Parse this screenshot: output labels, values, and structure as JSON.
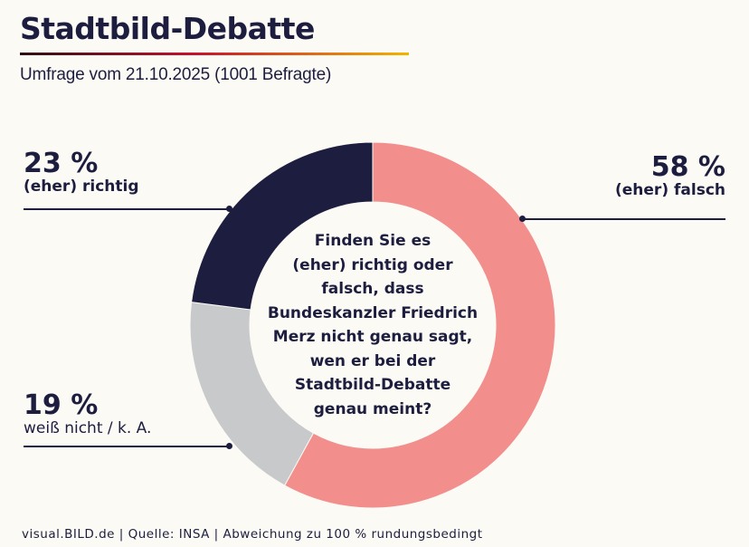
{
  "header": {
    "title": "Stadtbild-Debatte",
    "subtitle": "Umfrage vom 21.10.2025 (1001 Befragte)"
  },
  "chart_data": {
    "type": "pie",
    "variant": "donut",
    "title": "Stadtbild-Debatte",
    "subtitle": "Umfrage vom 21.10.2025 (1001 Befragte)",
    "question": "Finden Sie es\n(eher) richtig oder\nfalsch, dass\nBundeskanzler Friedrich\nMerz nicht genau sagt,\nwen er bei der\nStadtbild-Debatte\ngenau meint?",
    "unit": "%",
    "slices": [
      {
        "label": "(eher) falsch",
        "value": 58,
        "value_label": "58 %",
        "color": "#f28e8c"
      },
      {
        "label": "weiß nicht / k. A.",
        "value": 19,
        "value_label": "19 %",
        "color": "#c8c9cb"
      },
      {
        "label": "(eher) richtig",
        "value": 23,
        "value_label": "23 %",
        "color": "#1d1e3f"
      }
    ]
  },
  "footer": {
    "source_line": "visual.BILD.de | Quelle: INSA | Abweichung zu 100 % rundungsbedingt"
  }
}
